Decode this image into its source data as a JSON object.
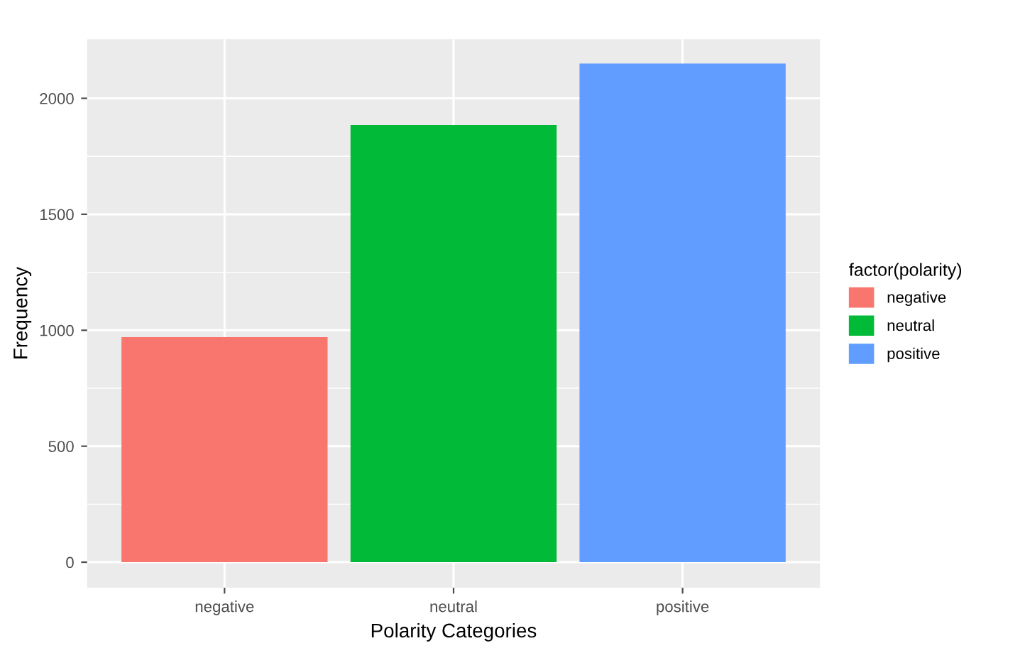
{
  "chart_data": {
    "type": "bar",
    "xlabel": "Polarity Categories",
    "ylabel": "Frequency",
    "legend_title": "factor(polarity)",
    "categories": [
      "negative",
      "neutral",
      "positive"
    ],
    "series": [
      {
        "name": "negative",
        "color": "#f8766d",
        "values": [
          970,
          null,
          null
        ]
      },
      {
        "name": "neutral",
        "color": "#00ba38",
        "values": [
          null,
          1885,
          null
        ]
      },
      {
        "name": "positive",
        "color": "#619cff",
        "values": [
          null,
          null,
          2150
        ]
      }
    ],
    "ylim": [
      -110,
      2255
    ],
    "yticks": [
      0,
      500,
      1000,
      1500,
      2000
    ],
    "grid": true,
    "legend": "right"
  }
}
